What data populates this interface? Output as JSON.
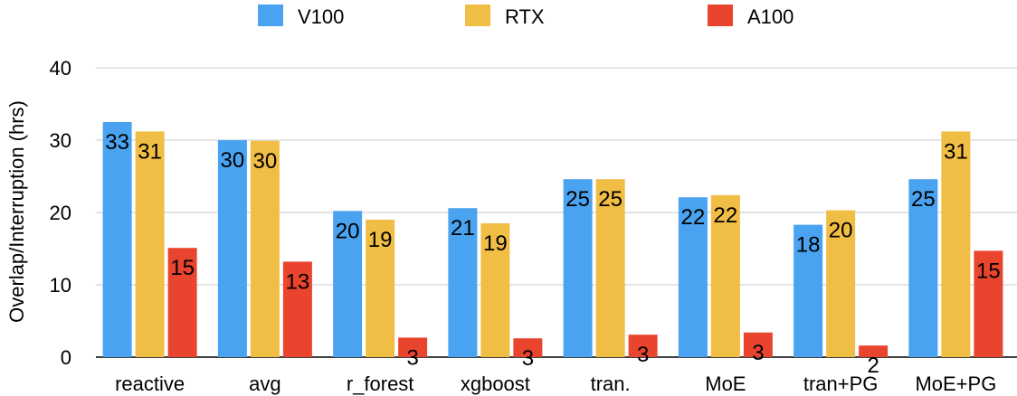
{
  "chart_data": {
    "type": "bar",
    "ylabel": "Overlap/Interruption (hrs)",
    "ylim": [
      0,
      40
    ],
    "yticks": [
      0,
      10,
      20,
      30,
      40
    ],
    "grid": true,
    "legend_position": "top",
    "categories": [
      "reactive",
      "avg",
      "r_forest",
      "xgboost",
      "tran.",
      "MoE",
      "tran+PG",
      "MoE+PG"
    ],
    "series": [
      {
        "name": "V100",
        "color": "#4aa3f0",
        "values": [
          32.5,
          30.0,
          20.2,
          20.6,
          24.6,
          22.1,
          18.3,
          24.6
        ],
        "labels": [
          "33",
          "30",
          "20",
          "21",
          "25",
          "22",
          "18",
          "25"
        ]
      },
      {
        "name": "RTX",
        "color": "#f0bd45",
        "values": [
          31.2,
          29.9,
          19.0,
          18.5,
          24.6,
          22.4,
          20.3,
          31.2
        ],
        "labels": [
          "31",
          "30",
          "19",
          "19",
          "25",
          "22",
          "20",
          "31"
        ]
      },
      {
        "name": "A100",
        "color": "#e9442e",
        "values": [
          15.1,
          13.2,
          2.7,
          2.6,
          3.1,
          3.4,
          1.6,
          14.7
        ],
        "labels": [
          "15",
          "13",
          "3",
          "3",
          "3",
          "3",
          "2",
          "15"
        ]
      }
    ]
  }
}
